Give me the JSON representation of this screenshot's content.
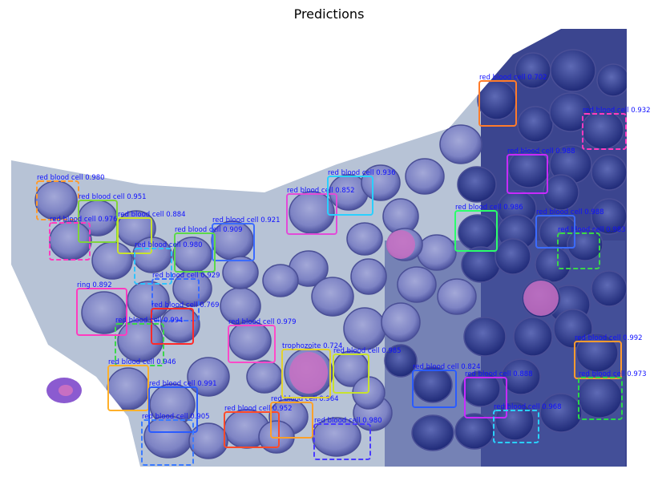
{
  "figure": {
    "title": "Predictions"
  },
  "image": {
    "subject": "",
    "colors": {
      "background": "#eef0f8",
      "cell_fill": "#7d83c4",
      "cell_dark": "#2e3a8c",
      "cell_edge": "#5b5fa8",
      "pink_cell": "#c86fc2"
    }
  },
  "detections": [
    {
      "label": "red blood cell 0.980",
      "class": "red blood cell",
      "color": "#ff9b2f"
    },
    {
      "label": "red blood cell 0.951",
      "class": "red blood cell",
      "color": "#7fd43a"
    },
    {
      "label": "red blood cell 0.884",
      "class": "red blood cell",
      "color": "#c8e22e"
    },
    {
      "label": "red blood cell 0.976",
      "class": "red blood cell",
      "color": "#ff3bbf"
    },
    {
      "label": "red blood cell 0.921",
      "class": "red blood cell",
      "color": "#3b6bff"
    },
    {
      "label": "red blood cell 0.909",
      "class": "red blood cell",
      "color": "#5cd84a"
    },
    {
      "label": "red blood cell 0.980",
      "class": "red blood cell",
      "color": "#2fc3ff"
    },
    {
      "label": "red blood cell 0.852",
      "class": "red blood cell",
      "color": "#e24ad8"
    },
    {
      "label": "red blood cell 0.936",
      "class": "red blood cell",
      "color": "#2ad0ff"
    },
    {
      "label": "red blood cell 0.929",
      "class": "red blood cell",
      "color": "#3b6bff"
    },
    {
      "label": "red blood cell 0.769",
      "class": "red blood cell",
      "color": "#ff2a2a"
    },
    {
      "label": "red blood cell 0.979",
      "class": "red blood cell",
      "color": "#ff4ac8"
    },
    {
      "label": "red blood cell 0.994",
      "class": "red blood cell",
      "color": "#3bd64a"
    },
    {
      "label": "red blood cell 0.946",
      "class": "red blood cell",
      "color": "#ffb02a"
    },
    {
      "label": "red blood cell 0.991",
      "class": "red blood cell",
      "color": "#2a5bff"
    },
    {
      "label": "red blood cell 0.905",
      "class": "red blood cell",
      "color": "#3b7bff"
    },
    {
      "label": "red blood cell 0.952",
      "class": "red blood cell",
      "color": "#ff4a2a"
    },
    {
      "label": "red blood cell 0.964",
      "class": "red blood cell",
      "color": "#ffa02a"
    },
    {
      "label": "red blood cell 0.980",
      "class": "red blood cell",
      "color": "#4a3bff"
    },
    {
      "label": "red blood cell 0.985",
      "class": "red blood cell",
      "color": "#c8e22e"
    },
    {
      "label": "red blood cell 0.702",
      "class": "red blood cell",
      "color": "#ff7b2a"
    },
    {
      "label": "red blood cell 0.932",
      "class": "red blood cell",
      "color": "#ff3bbf"
    },
    {
      "label": "red blood cell 0.986",
      "class": "red blood cell",
      "color": "#2aff6b"
    },
    {
      "label": "red blood cell 0.988",
      "class": "red blood cell",
      "color": "#c82aff"
    },
    {
      "label": "red blood cell 0.983",
      "class": "red blood cell",
      "color": "#3bd64a"
    },
    {
      "label": "red blood cell 0.988",
      "class": "red blood cell",
      "color": "#3b6bff"
    },
    {
      "label": "red blood cell 0.992",
      "class": "red blood cell",
      "color": "#ff9b2f"
    },
    {
      "label": "red blood cell 0.973",
      "class": "red blood cell",
      "color": "#2ad84a"
    },
    {
      "label": "red blood cell 0.824",
      "class": "red blood cell",
      "color": "#2a5bff"
    },
    {
      "label": "red blood cell 0.888",
      "class": "red blood cell",
      "color": "#c82aff"
    },
    {
      "label": "red blood cell 0.968",
      "class": "red blood cell",
      "color": "#2ad0ff"
    },
    {
      "label": "ring 0.892",
      "class": "ring",
      "color": "#ff3bbf"
    },
    {
      "label": "trophozoite 0.724",
      "class": "trophozoite",
      "color": "#e2d22e"
    }
  ]
}
